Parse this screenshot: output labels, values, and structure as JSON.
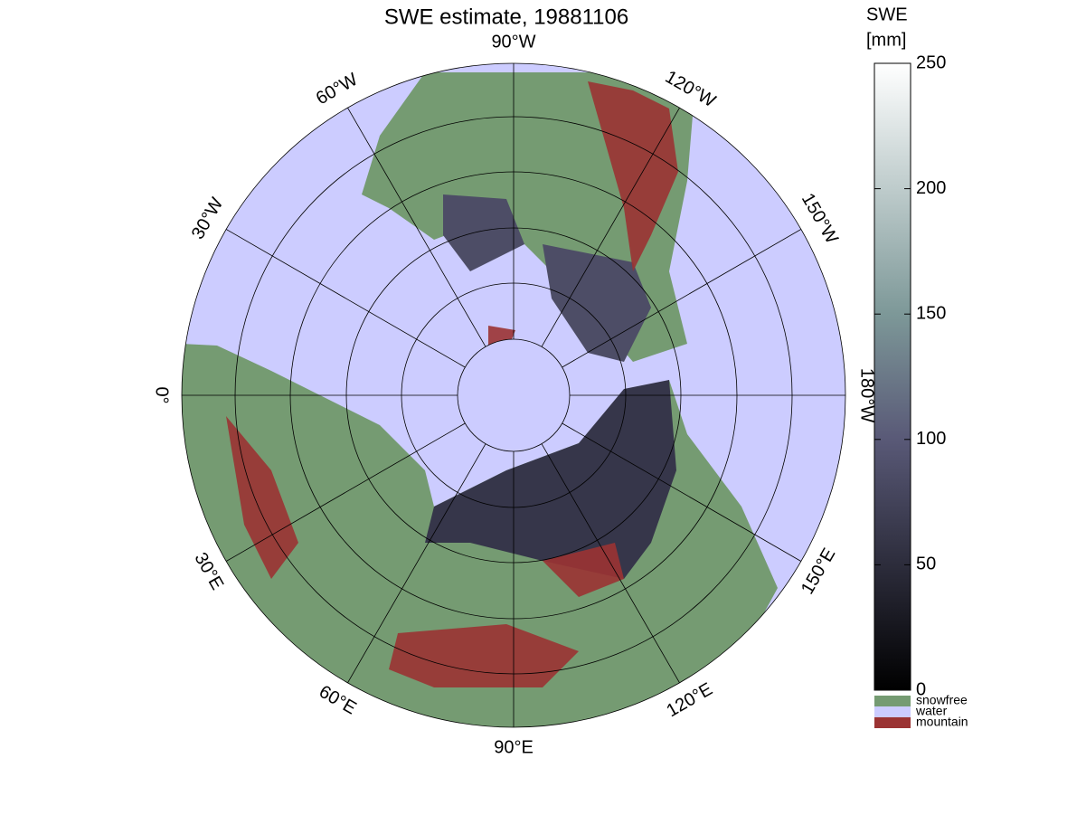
{
  "map": {
    "title": "SWE estimate, 19881106",
    "colorbar": {
      "label": [
        "SWE",
        "[mm]"
      ],
      "lim": [
        0,
        250
      ],
      "ticks": [
        0,
        50,
        100,
        150,
        200,
        250
      ]
    },
    "legend": [
      {
        "label": "snowfree",
        "color": "#759b72"
      },
      {
        "label": "water",
        "color": "#ccccff"
      },
      {
        "label": "mountain",
        "color": "#9b3333"
      }
    ],
    "meridians": [
      {
        "lon": -90,
        "label": "90°W"
      },
      {
        "lon": -120,
        "label": "120°W"
      },
      {
        "lon": -150,
        "label": "150°W"
      },
      {
        "lon": 180,
        "label": "180°W"
      },
      {
        "lon": 150,
        "label": "150°E"
      },
      {
        "lon": 120,
        "label": "120°E"
      },
      {
        "lon": 90,
        "label": "90°E"
      },
      {
        "lon": 60,
        "label": "60°E"
      },
      {
        "lon": 30,
        "label": "30°E"
      },
      {
        "lon": 0,
        "label": "0°"
      },
      {
        "lon": -30,
        "label": "30°W"
      },
      {
        "lon": -60,
        "label": "60°W"
      }
    ]
  }
}
